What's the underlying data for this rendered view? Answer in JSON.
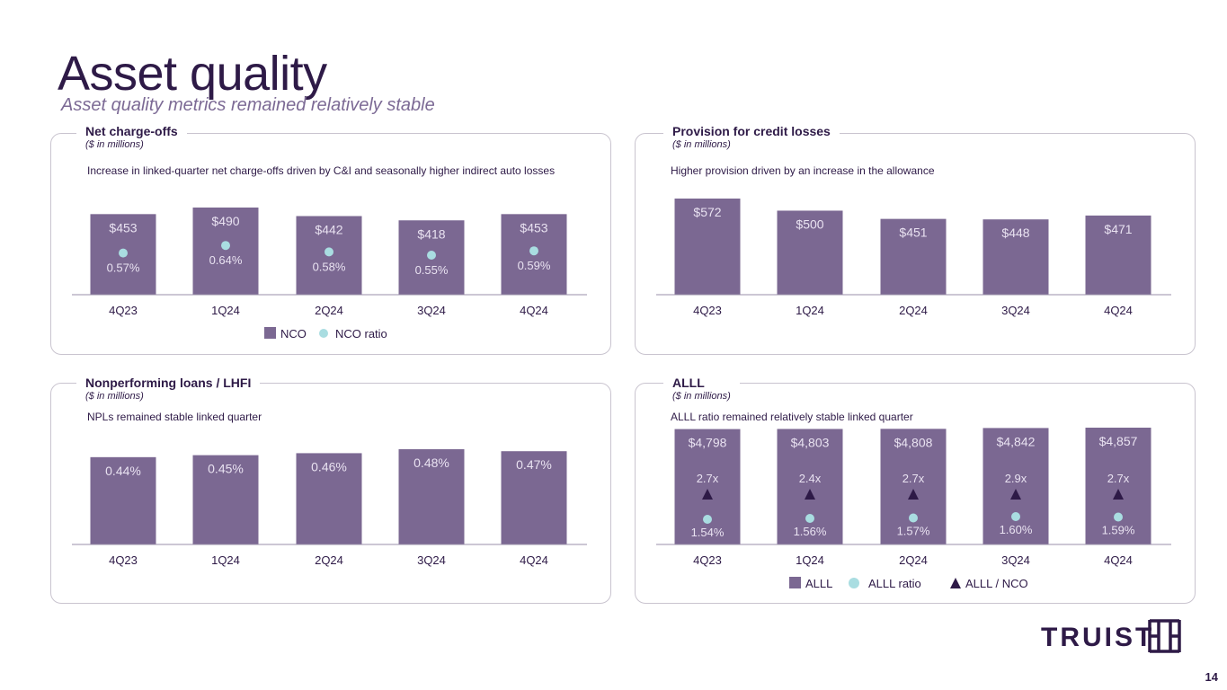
{
  "title": "Asset quality",
  "subtitle": "Asset quality metrics remained relatively stable",
  "page_number": "14",
  "logo_text": "TRUIST",
  "colors": {
    "bar": "#7b6892",
    "ratio_dot": "#a9dde1",
    "triangle": "#2e1a47",
    "bar_label": "#e9e2f1",
    "axis": "#9a8fa8"
  },
  "chart_data": [
    {
      "type": "bar",
      "title": "Net charge-offs",
      "units": "($ in millions)",
      "note": "Increase in linked-quarter net charge-offs driven by C&I and seasonally higher indirect auto losses",
      "categories": [
        "4Q23",
        "1Q24",
        "2Q24",
        "3Q24",
        "4Q24"
      ],
      "series": [
        {
          "name": "NCO",
          "values": [
            453,
            490,
            442,
            418,
            453
          ],
          "labels": [
            "$453",
            "$490",
            "$442",
            "$418",
            "$453"
          ]
        },
        {
          "name": "NCO ratio",
          "values": [
            0.57,
            0.64,
            0.58,
            0.55,
            0.59
          ],
          "labels": [
            "0.57%",
            "0.64%",
            "0.58%",
            "0.55%",
            "0.59%"
          ]
        }
      ],
      "legend": [
        "NCO",
        "NCO ratio"
      ]
    },
    {
      "type": "bar",
      "title": "Provision for credit losses",
      "units": "($ in millions)",
      "note": "Higher provision driven by an increase in the allowance",
      "categories": [
        "4Q23",
        "1Q24",
        "2Q24",
        "3Q24",
        "4Q24"
      ],
      "series": [
        {
          "name": "Provision",
          "values": [
            572,
            500,
            451,
            448,
            471
          ],
          "labels": [
            "$572",
            "$500",
            "$451",
            "$448",
            "$471"
          ]
        }
      ],
      "legend": []
    },
    {
      "type": "bar",
      "title": "Nonperforming loans / LHFI",
      "units": "($ in millions)",
      "note": "NPLs remained stable linked quarter",
      "categories": [
        "4Q23",
        "1Q24",
        "2Q24",
        "3Q24",
        "4Q24"
      ],
      "series": [
        {
          "name": "NPL / LHFI",
          "values": [
            0.44,
            0.45,
            0.46,
            0.48,
            0.47
          ],
          "labels": [
            "0.44%",
            "0.45%",
            "0.46%",
            "0.48%",
            "0.47%"
          ]
        }
      ],
      "legend": []
    },
    {
      "type": "bar",
      "title": "ALLL",
      "units": "($ in millions)",
      "note": "ALLL ratio remained relatively stable linked quarter",
      "categories": [
        "4Q23",
        "1Q24",
        "2Q24",
        "3Q24",
        "4Q24"
      ],
      "series": [
        {
          "name": "ALLL",
          "values": [
            4798,
            4803,
            4808,
            4842,
            4857
          ],
          "labels": [
            "$4,798",
            "$4,803",
            "$4,808",
            "$4,842",
            "$4,857"
          ]
        },
        {
          "name": "ALLL ratio",
          "values": [
            1.54,
            1.56,
            1.57,
            1.6,
            1.59
          ],
          "labels": [
            "1.54%",
            "1.56%",
            "1.57%",
            "1.60%",
            "1.59%"
          ]
        },
        {
          "name": "ALLL / NCO",
          "values": [
            2.7,
            2.4,
            2.7,
            2.9,
            2.7
          ],
          "labels": [
            "2.7x",
            "2.4x",
            "2.7x",
            "2.9x",
            "2.7x"
          ]
        }
      ],
      "legend": [
        "ALLL",
        "ALLL ratio",
        "ALLL / NCO"
      ]
    }
  ]
}
